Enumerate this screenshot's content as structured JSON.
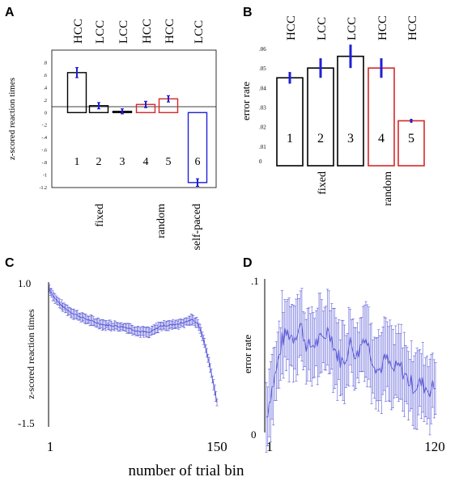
{
  "panel_letters": [
    "A",
    "B",
    "C",
    "D"
  ],
  "shared_xlabel": "number of trial bin",
  "colors": {
    "black": "#000000",
    "red": "#d62728",
    "blue": "#1f1fd6",
    "trace": "#5a5ad8"
  },
  "chart_data": [
    {
      "panel": "A",
      "type": "bar",
      "ylabel": "z-scored reaction times",
      "ylim": [
        -1.2,
        1.0
      ],
      "yticks": [
        ".8",
        ".6",
        ".4",
        ".2",
        "0",
        "-.2",
        "-.4",
        "-.6",
        "-.8",
        "-1",
        "-1.2"
      ],
      "yticks_values": [
        0.8,
        0.6,
        0.4,
        0.2,
        0,
        -0.2,
        -0.4,
        -0.6,
        -0.8,
        -1.0,
        -1.2
      ],
      "categories": [
        "HCC",
        "LCC",
        "LCC",
        "HCC",
        "HCC",
        "LCC"
      ],
      "bar_numbers": [
        "1",
        "2",
        "3",
        "4",
        "5",
        "6"
      ],
      "values": [
        0.64,
        0.11,
        0.02,
        0.13,
        0.22,
        -1.12
      ],
      "errors": [
        0.08,
        0.05,
        0.04,
        0.05,
        0.05,
        0.06
      ],
      "bar_colors": [
        "black",
        "black",
        "black",
        "red",
        "red",
        "blue"
      ],
      "group_labels": [
        "fixed",
        "random",
        "self-paced"
      ]
    },
    {
      "panel": "B",
      "type": "bar",
      "ylabel": "error rate",
      "ylim": [
        0,
        0.06
      ],
      "yticks": [
        ".06",
        ".05",
        ".04",
        ".03",
        ".02",
        ".01",
        "0"
      ],
      "yticks_values": [
        0.06,
        0.05,
        0.04,
        0.03,
        0.02,
        0.01,
        0
      ],
      "categories": [
        "HCC",
        "LCC",
        "LCC",
        "HCC",
        "HCC"
      ],
      "bar_numbers": [
        "1",
        "2",
        "3",
        "4",
        "5"
      ],
      "values": [
        0.045,
        0.05,
        0.056,
        0.05,
        0.023
      ],
      "errors": [
        0.003,
        0.005,
        0.006,
        0.005,
        0.001
      ],
      "bar_colors": [
        "black",
        "black",
        "black",
        "red",
        "red"
      ],
      "group_labels": [
        "fixed",
        "random"
      ]
    },
    {
      "panel": "C",
      "type": "line",
      "ylabel": "z-scored reaction times",
      "xlim": [
        1,
        150
      ],
      "ylim": [
        -1.5,
        1.0
      ],
      "xticks": [
        "1",
        "150"
      ],
      "yticks": [
        "1.0",
        "-1.5"
      ],
      "x_anchors": [
        1,
        5,
        12,
        20,
        30,
        40,
        50,
        60,
        70,
        80,
        90,
        100,
        110,
        120,
        128,
        133,
        138,
        142,
        146,
        150
      ],
      "y_anchors": [
        0.9,
        0.75,
        0.58,
        0.46,
        0.36,
        0.28,
        0.22,
        0.2,
        0.17,
        0.1,
        0.07,
        0.2,
        0.22,
        0.26,
        0.32,
        0.25,
        -0.05,
        -0.4,
        -0.8,
        -1.25
      ],
      "error_band": 0.08
    },
    {
      "panel": "D",
      "type": "line",
      "ylabel": "error rate",
      "xlim": [
        1,
        120
      ],
      "ylim": [
        0,
        0.1
      ],
      "xticks": [
        "1",
        "120"
      ],
      "yticks": [
        ".1",
        "0"
      ],
      "x_anchors": [
        1,
        4,
        8,
        12,
        16,
        20,
        25,
        30,
        35,
        40,
        45,
        50,
        55,
        60,
        65,
        70,
        75,
        80,
        85,
        90,
        95,
        100,
        105,
        110,
        115,
        120
      ],
      "y_anchors": [
        0.01,
        0.025,
        0.04,
        0.06,
        0.065,
        0.062,
        0.07,
        0.055,
        0.058,
        0.06,
        0.068,
        0.052,
        0.045,
        0.058,
        0.05,
        0.064,
        0.05,
        0.04,
        0.048,
        0.04,
        0.043,
        0.035,
        0.03,
        0.032,
        0.028,
        0.03
      ],
      "error_band": 0.022
    }
  ]
}
